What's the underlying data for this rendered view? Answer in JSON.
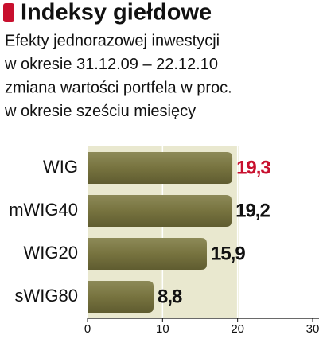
{
  "chart_data": {
    "type": "bar",
    "orientation": "horizontal",
    "title": "Indeksy giełdowe",
    "subtitle": [
      "Efekty jednorazowej inwestycji",
      "w okresie 31.12.09 – 22.12.10",
      "zmiana wartości portfela w proc.",
      "w okresie sześciu miesięcy"
    ],
    "categories": [
      "WIG",
      "mWIG40",
      "WIG20",
      "sWIG80"
    ],
    "values": [
      19.3,
      19.2,
      15.9,
      8.8
    ],
    "value_labels": [
      "19,3",
      "19,2",
      "15,9",
      "8,8"
    ],
    "value_label_colors": [
      "#c8102e",
      "#111111",
      "#111111",
      "#111111"
    ],
    "color": "#77733f",
    "xlim": [
      0,
      30
    ],
    "xticks": [
      0,
      10,
      20,
      30
    ],
    "grid": true
  }
}
